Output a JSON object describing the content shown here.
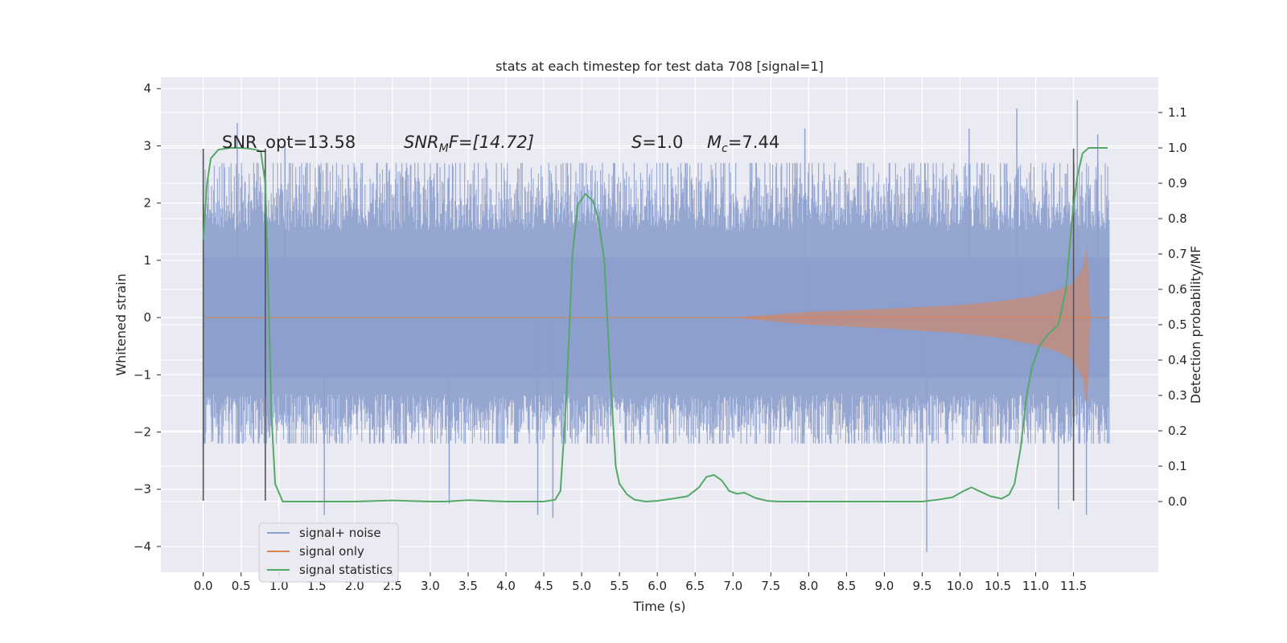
{
  "chart_data": {
    "type": "line",
    "title": "stats at each timestep for test data 708 [signal=1]",
    "xlabel": "Time (s)",
    "ylabel_left": "Whitened strain",
    "ylabel_right": "Detection probability/MF",
    "xlim": [
      -0.56,
      12.62
    ],
    "ylim_left": [
      -4.45,
      4.2
    ],
    "ylim_right": [
      -0.2,
      1.2
    ],
    "x_ticks": [
      "0.0",
      "0.5",
      "1.0",
      "1.5",
      "2.0",
      "2.5",
      "3.0",
      "3.5",
      "4.0",
      "4.5",
      "5.0",
      "5.5",
      "6.0",
      "6.5",
      "7.0",
      "7.5",
      "8.0",
      "8.5",
      "9.0",
      "9.5",
      "10.0",
      "10.5",
      "11.0",
      "11.5"
    ],
    "y_ticks_left": [
      "4",
      "3",
      "2",
      "1",
      "0",
      "−1",
      "−2",
      "−3",
      "−4"
    ],
    "y_ticks_right": [
      "1.1",
      "1.0",
      "0.9",
      "0.8",
      "0.7",
      "0.6",
      "0.5",
      "0.4",
      "0.3",
      "0.2",
      "0.1",
      "0.0"
    ],
    "grid": true,
    "legend_position": "lower-left",
    "colors": {
      "background": "#eaeaf2",
      "grid": "#ffffff",
      "signal_noise": "#8c9fcd",
      "signal_only": "#dd8452",
      "signal_stats": "#55a868",
      "vlines": "#555555"
    },
    "annotations": {
      "snr_opt": "SNR_opt=13.58",
      "snr_mf_base": "SNR",
      "snr_mf_sub": "M",
      "snr_mf_rest": "F=[14.72]",
      "s_var": "S",
      "s_val": "=1.0",
      "mc_base": "M",
      "mc_sub": "c",
      "mc_val": "=7.44"
    },
    "vertical_lines_x": [
      0.0,
      0.82,
      11.5
    ],
    "vertical_lines_ylim": [
      -3.2,
      2.95
    ],
    "series": [
      {
        "name": "signal+ noise",
        "kind": "noise_band",
        "x_range": [
          0.0,
          11.97
        ],
        "core_sigma": 1.0,
        "typical_extent": [
          -2.2,
          2.7
        ],
        "spikes": [
          {
            "x": 1.08,
            "y": 3.05
          },
          {
            "x": 1.6,
            "y": -3.45
          },
          {
            "x": 3.25,
            "y": -3.25
          },
          {
            "x": 4.42,
            "y": -3.45
          },
          {
            "x": 4.62,
            "y": -3.5
          },
          {
            "x": 7.95,
            "y": 3.3
          },
          {
            "x": 9.56,
            "y": -4.1
          },
          {
            "x": 10.12,
            "y": 3.3
          },
          {
            "x": 10.75,
            "y": 3.65
          },
          {
            "x": 11.3,
            "y": -3.35
          },
          {
            "x": 11.55,
            "y": 3.8
          },
          {
            "x": 11.67,
            "y": -3.45
          },
          {
            "x": 0.45,
            "y": 3.4
          },
          {
            "x": 11.82,
            "y": 3.2
          }
        ]
      },
      {
        "name": "signal only",
        "kind": "chirp_envelope",
        "points": [
          {
            "x": 0.0,
            "a": 0.0
          },
          {
            "x": 7.0,
            "a": 0.0
          },
          {
            "x": 7.5,
            "a": 0.05
          },
          {
            "x": 8.0,
            "a": 0.1
          },
          {
            "x": 9.0,
            "a": 0.15
          },
          {
            "x": 10.0,
            "a": 0.22
          },
          {
            "x": 10.5,
            "a": 0.28
          },
          {
            "x": 11.0,
            "a": 0.38
          },
          {
            "x": 11.3,
            "a": 0.48
          },
          {
            "x": 11.5,
            "a": 0.6
          },
          {
            "x": 11.62,
            "a": 0.85
          },
          {
            "x": 11.68,
            "a": 1.25
          },
          {
            "x": 11.72,
            "a": 0.0
          },
          {
            "x": 11.97,
            "a": 0.0
          }
        ]
      },
      {
        "name": "signal statistics",
        "kind": "line",
        "axis": "right",
        "x": [
          0.0,
          0.05,
          0.1,
          0.2,
          0.35,
          0.5,
          0.6,
          0.7,
          0.76,
          0.82,
          0.86,
          0.9,
          0.95,
          1.05,
          1.3,
          2.0,
          2.5,
          3.0,
          3.2,
          3.5,
          4.0,
          4.5,
          4.65,
          4.72,
          4.8,
          4.88,
          4.95,
          5.05,
          5.15,
          5.22,
          5.3,
          5.38,
          5.45,
          5.5,
          5.6,
          5.7,
          5.85,
          6.0,
          6.2,
          6.4,
          6.55,
          6.65,
          6.75,
          6.85,
          6.95,
          7.05,
          7.15,
          7.3,
          7.45,
          7.6,
          8.0,
          8.5,
          9.0,
          9.5,
          9.7,
          9.9,
          10.05,
          10.15,
          10.25,
          10.4,
          10.55,
          10.65,
          10.72,
          10.8,
          10.88,
          10.95,
          11.05,
          11.15,
          11.3,
          11.4,
          11.48,
          11.55,
          11.62,
          11.7,
          11.8,
          11.95
        ],
        "y": [
          0.74,
          0.9,
          0.97,
          0.995,
          1.0,
          1.0,
          0.998,
          0.995,
          0.99,
          0.9,
          0.6,
          0.25,
          0.05,
          0.0,
          0.0,
          0.0,
          0.003,
          0.0,
          0.0,
          0.004,
          0.0,
          0.0,
          0.005,
          0.03,
          0.3,
          0.7,
          0.84,
          0.87,
          0.85,
          0.8,
          0.68,
          0.35,
          0.1,
          0.05,
          0.02,
          0.005,
          0.0,
          0.002,
          0.008,
          0.015,
          0.04,
          0.07,
          0.075,
          0.06,
          0.03,
          0.022,
          0.025,
          0.01,
          0.002,
          0.0,
          0.0,
          0.0,
          0.0,
          0.0,
          0.005,
          0.012,
          0.03,
          0.04,
          0.03,
          0.015,
          0.008,
          0.02,
          0.05,
          0.15,
          0.3,
          0.38,
          0.44,
          0.47,
          0.5,
          0.6,
          0.8,
          0.92,
          0.985,
          1.0,
          1.0,
          1.0
        ]
      }
    ]
  }
}
